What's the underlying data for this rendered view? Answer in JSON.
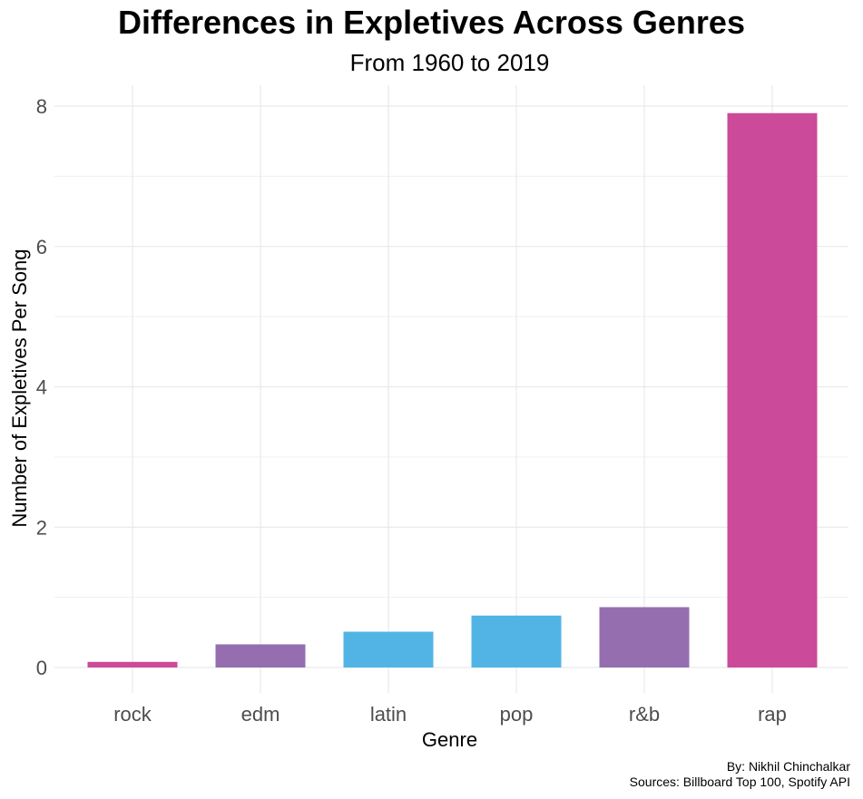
{
  "title": "Differences in Expletives Across Genres",
  "subtitle": "From 1960 to 2019",
  "caption": {
    "line1": "By: Nikhil Chinchalkar",
    "line2": "Sources: Billboard Top 100, Spotify API"
  },
  "chart_data": {
    "type": "bar",
    "xlabel": "Genre",
    "ylabel": "Number of Expletives Per Song",
    "categories": [
      "rock",
      "edm",
      "latin",
      "pop",
      "r&b",
      "rap"
    ],
    "values": [
      0.08,
      0.33,
      0.51,
      0.74,
      0.86,
      7.9
    ],
    "colors": [
      "#CC4A9A",
      "#956EB0",
      "#51B4E5",
      "#51B4E5",
      "#956EB0",
      "#CC4A9A"
    ],
    "ylim": [
      0,
      8.3
    ],
    "yticks": [
      0,
      2,
      4,
      6,
      8
    ],
    "grid": true,
    "legend": "none"
  }
}
